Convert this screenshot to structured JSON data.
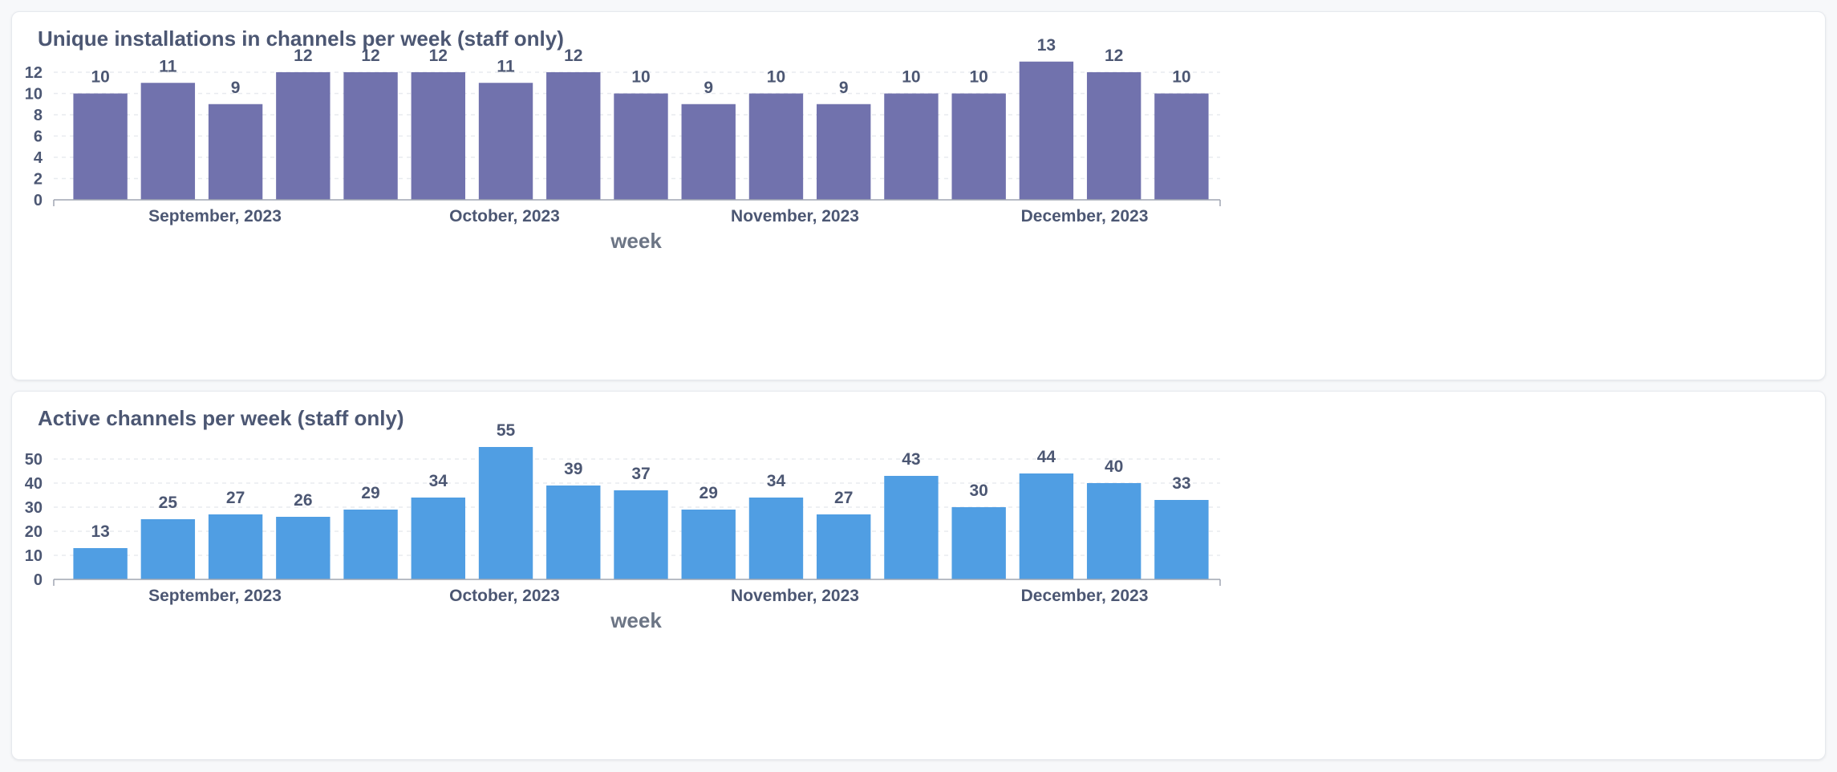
{
  "chart_data": [
    {
      "type": "bar",
      "title": "Unique installations in channels per week (staff only)",
      "xlabel": "week",
      "ylabel": "",
      "color": "#7172ad",
      "values": [
        10,
        11,
        9,
        12,
        12,
        12,
        11,
        12,
        10,
        9,
        10,
        9,
        10,
        10,
        13,
        12,
        10
      ],
      "month_labels": [
        "September, 2023",
        "October, 2023",
        "November, 2023",
        "December, 2023"
      ],
      "yticks": [
        0,
        2,
        4,
        6,
        8,
        10,
        12
      ],
      "ylim": [
        0,
        13
      ],
      "grid": true,
      "data_labels": true
    },
    {
      "type": "bar",
      "title": "Active channels per week (staff only)",
      "xlabel": "week",
      "ylabel": "",
      "color": "#509ee3",
      "values": [
        13,
        25,
        27,
        26,
        29,
        34,
        55,
        39,
        37,
        29,
        34,
        27,
        43,
        30,
        44,
        40,
        33
      ],
      "month_labels": [
        "September, 2023",
        "October, 2023",
        "November, 2023",
        "December, 2023"
      ],
      "yticks": [
        0,
        10,
        20,
        30,
        40,
        50
      ],
      "ylim": [
        0,
        55
      ],
      "grid": true,
      "data_labels": true
    }
  ]
}
